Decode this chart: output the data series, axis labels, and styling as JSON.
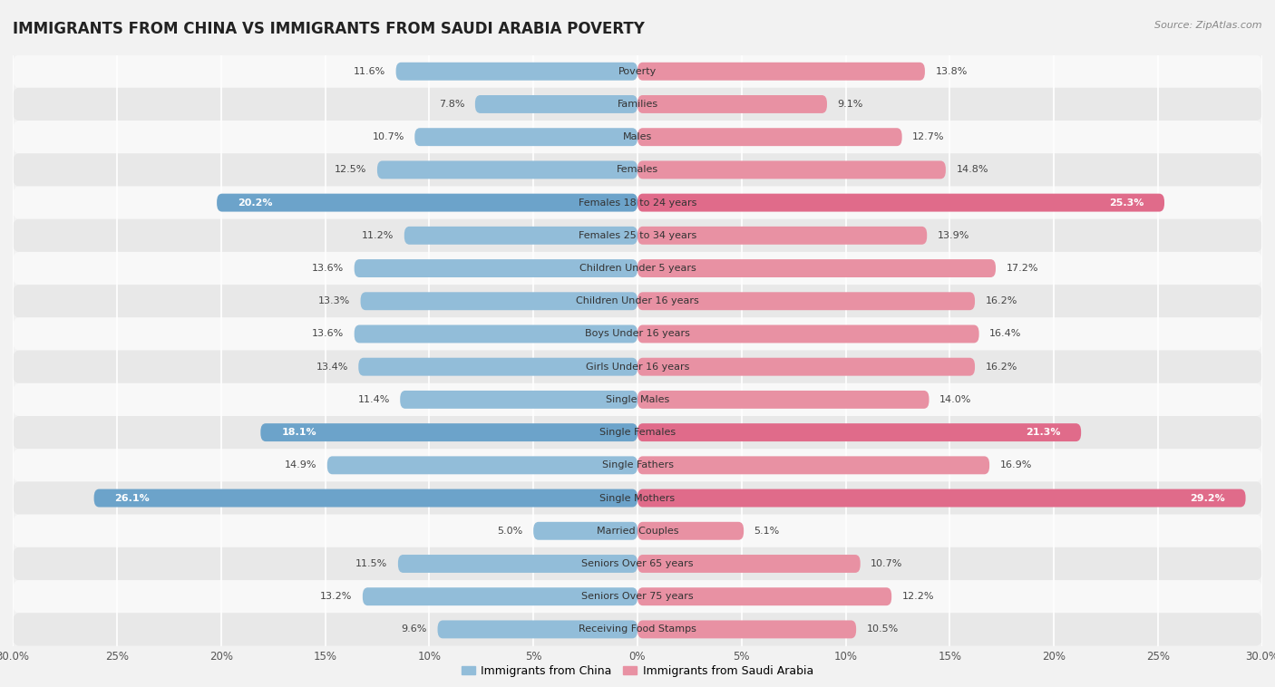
{
  "title": "IMMIGRANTS FROM CHINA VS IMMIGRANTS FROM SAUDI ARABIA POVERTY",
  "source": "Source: ZipAtlas.com",
  "categories": [
    "Poverty",
    "Families",
    "Males",
    "Females",
    "Females 18 to 24 years",
    "Females 25 to 34 years",
    "Children Under 5 years",
    "Children Under 16 years",
    "Boys Under 16 years",
    "Girls Under 16 years",
    "Single Males",
    "Single Females",
    "Single Fathers",
    "Single Mothers",
    "Married Couples",
    "Seniors Over 65 years",
    "Seniors Over 75 years",
    "Receiving Food Stamps"
  ],
  "china_values": [
    11.6,
    7.8,
    10.7,
    12.5,
    20.2,
    11.2,
    13.6,
    13.3,
    13.6,
    13.4,
    11.4,
    18.1,
    14.9,
    26.1,
    5.0,
    11.5,
    13.2,
    9.6
  ],
  "saudi_values": [
    13.8,
    9.1,
    12.7,
    14.8,
    25.3,
    13.9,
    17.2,
    16.2,
    16.4,
    16.2,
    14.0,
    21.3,
    16.9,
    29.2,
    5.1,
    10.7,
    12.2,
    10.5
  ],
  "china_color": "#92bdd9",
  "saudi_color": "#e891a3",
  "china_highlight_color": "#6ca3ca",
  "saudi_highlight_color": "#e06b8a",
  "highlight_rows": [
    4,
    11,
    13
  ],
  "china_label": "Immigrants from China",
  "saudi_label": "Immigrants from Saudi Arabia",
  "xlim": 30.0,
  "background_color": "#f2f2f2",
  "row_bg_light": "#f8f8f8",
  "row_bg_dark": "#e8e8e8",
  "bar_height": 0.55,
  "title_fontsize": 12,
  "label_fontsize": 8,
  "value_fontsize": 8,
  "axis_fontsize": 8.5
}
